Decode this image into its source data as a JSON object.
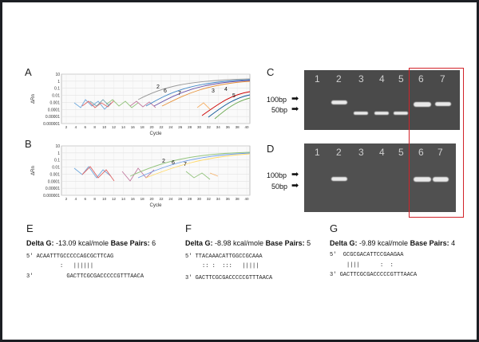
{
  "panels": {
    "A": {
      "label": "A",
      "yaxis": "ΔRn",
      "xaxis": "Cycle",
      "yticks": [
        "10",
        "1",
        "0.1",
        "0.01",
        "0.001",
        "0.0001",
        "0.00001",
        "0.000001"
      ],
      "xticks": [
        "2",
        "4",
        "6",
        "8",
        "10",
        "12",
        "14",
        "16",
        "18",
        "20",
        "22",
        "24",
        "26",
        "28",
        "30",
        "32",
        "34",
        "36",
        "38",
        "40"
      ],
      "curve_labels": [
        "2",
        "6",
        "7",
        "3",
        "4",
        "5"
      ]
    },
    "B": {
      "label": "B",
      "yaxis": "ΔRn",
      "xaxis": "Cycle",
      "yticks": [
        "10",
        "1",
        "0.1",
        "0.01",
        "0.001",
        "0.0001",
        "0.00001",
        "0.000001"
      ],
      "xticks": [
        "2",
        "4",
        "6",
        "8",
        "10",
        "12",
        "14",
        "16",
        "18",
        "20",
        "22",
        "24",
        "26",
        "28",
        "30",
        "32",
        "34",
        "36",
        "38",
        "40"
      ],
      "curve_labels": [
        "2",
        "6",
        "7"
      ]
    },
    "C": {
      "label": "C",
      "lanes": [
        "1",
        "2",
        "3",
        "4",
        "5",
        "6",
        "7"
      ],
      "sizes": [
        "100bp",
        "50bp"
      ]
    },
    "D": {
      "label": "D",
      "lanes": [
        "1",
        "2",
        "3",
        "4",
        "5",
        "6",
        "7"
      ],
      "sizes": [
        "100bp",
        "50bp"
      ]
    },
    "E": {
      "label": "E",
      "delta_label": "Delta G:",
      "delta_value": "-13.09 kcal/mole",
      "bp_label": "Base Pairs:",
      "bp_value": "6",
      "top": "5' ACAATTTGCCCCCAGCGCTTCAG",
      "pairs": "          :   ||||||",
      "bottom": "3'          GACTTCGCGACCCCCGTTTAACA"
    },
    "F": {
      "label": "F",
      "delta_label": "Delta G:",
      "delta_value": "-8.98 kcal/mole",
      "bp_label": "Base Pairs:",
      "bp_value": "5",
      "top": "5' TTACAAACATTGGCCGCAAA",
      "pairs": "     :: :  :::   |||||",
      "bottom": "3' GACTTCGCGACCCCCGTTTAACA"
    },
    "G": {
      "label": "G",
      "delta_label": "Delta G:",
      "delta_value": "-9.89 kcal/mole",
      "bp_label": "Base Pairs:",
      "bp_value": "4",
      "top": "5'  GCGCGACATTCCGAAGAA",
      "pairs": "     ||||      :  :",
      "bottom": "3' GACTTCGCGACCCCCGTTTAACA"
    }
  },
  "colors": {
    "highlight": "#d2232a",
    "gel_bg": "#4a4a4a",
    "band": "#e9e9e9"
  }
}
